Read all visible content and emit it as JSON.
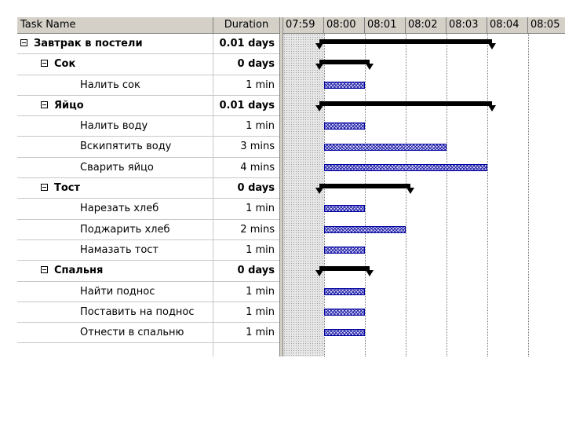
{
  "header": {
    "task_name": "Task Name",
    "duration": "Duration"
  },
  "timescale": {
    "ticks": [
      "07:59",
      "08:00",
      "08:01",
      "08:02",
      "08:03",
      "08:04",
      "08:05"
    ]
  },
  "tasks": [
    {
      "name": "Завтрак в постели",
      "duration": "0.01 days",
      "level": 0,
      "summary": true,
      "start_min": 0,
      "dur_min": 4
    },
    {
      "name": "Сок",
      "duration": "0 days",
      "level": 1,
      "summary": true,
      "start_min": 0,
      "dur_min": 1
    },
    {
      "name": "Налить сок",
      "duration": "1 min",
      "level": 2,
      "summary": false,
      "start_min": 0,
      "dur_min": 1
    },
    {
      "name": "Яйцо",
      "duration": "0.01 days",
      "level": 1,
      "summary": true,
      "start_min": 0,
      "dur_min": 4
    },
    {
      "name": "Налить воду",
      "duration": "1 min",
      "level": 2,
      "summary": false,
      "start_min": 0,
      "dur_min": 1
    },
    {
      "name": "Вскипятить воду",
      "duration": "3 mins",
      "level": 2,
      "summary": false,
      "start_min": 0,
      "dur_min": 3
    },
    {
      "name": "Сварить яйцо",
      "duration": "4 mins",
      "level": 2,
      "summary": false,
      "start_min": 0,
      "dur_min": 4
    },
    {
      "name": "Тост",
      "duration": "0 days",
      "level": 1,
      "summary": true,
      "start_min": 0,
      "dur_min": 2
    },
    {
      "name": "Нарезать хлеб",
      "duration": "1 min",
      "level": 2,
      "summary": false,
      "start_min": 0,
      "dur_min": 1
    },
    {
      "name": "Поджарить хлеб",
      "duration": "2 mins",
      "level": 2,
      "summary": false,
      "start_min": 0,
      "dur_min": 2
    },
    {
      "name": "Намазать тост",
      "duration": "1 min",
      "level": 2,
      "summary": false,
      "start_min": 0,
      "dur_min": 1
    },
    {
      "name": "Спальня",
      "duration": "0 days",
      "level": 1,
      "summary": true,
      "start_min": 0,
      "dur_min": 1
    },
    {
      "name": "Найти поднос",
      "duration": "1 min",
      "level": 2,
      "summary": false,
      "start_min": 0,
      "dur_min": 1
    },
    {
      "name": "Поставить на поднос",
      "duration": "1 min",
      "level": 2,
      "summary": false,
      "start_min": 0,
      "dur_min": 1
    },
    {
      "name": "Отнести в спальню",
      "duration": "1 min",
      "level": 2,
      "summary": false,
      "start_min": 0,
      "dur_min": 1
    },
    {
      "name": "",
      "duration": "",
      "level": 0,
      "summary": false,
      "start_min": null,
      "dur_min": null
    }
  ],
  "colors": {
    "task_bar": "#2222aa",
    "summary_bar": "#000000",
    "header_bg": "#d4d0c8"
  }
}
